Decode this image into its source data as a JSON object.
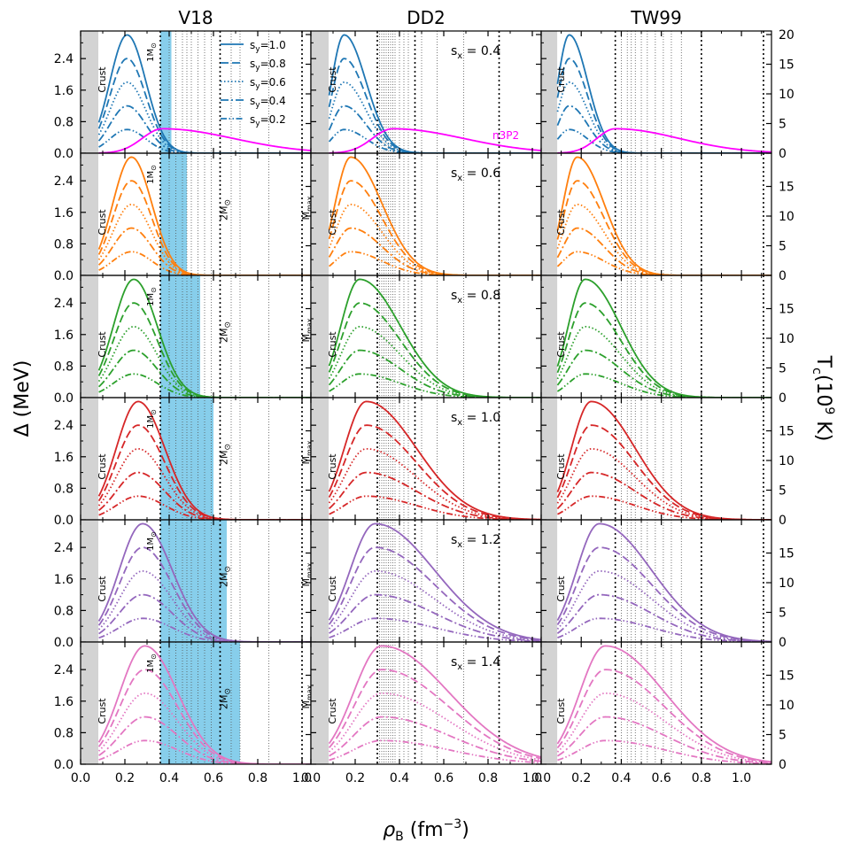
{
  "columns": [
    "V18",
    "DD2",
    "TW99"
  ],
  "ylabel_left": "Δ (MeV)",
  "ylabel_right": "T",
  "ylabel_right_sub": "c",
  "ylabel_right_tail": "(10",
  "ylabel_right_exp": "9",
  "ylabel_right_end": " K)",
  "xlabel_main": "ρ",
  "xlabel_sub": "B",
  "xlabel_units": " (fm",
  "xlabel_exp": "−3",
  "xlabel_close": ")",
  "crust_label": "Crust",
  "n3p2_label": "n3P2",
  "mass_labels": {
    "one": "1M",
    "two": "2M",
    "sun": "⊙",
    "max_main": "M",
    "max_sub": "max"
  },
  "legend": {
    "entries": [
      {
        "main": "s",
        "sub": "y",
        "tail": "=1.0",
        "dash": "solid"
      },
      {
        "main": "s",
        "sub": "y",
        "tail": "=0.8",
        "dash": "dashed"
      },
      {
        "main": "s",
        "sub": "y",
        "tail": "=0.6",
        "dash": "dotted"
      },
      {
        "main": "s",
        "sub": "y",
        "tail": "=0.4",
        "dash": "dashdot"
      },
      {
        "main": "s",
        "sub": "y",
        "tail": "=0.2",
        "dash": "dashdotdot"
      }
    ]
  },
  "colors": [
    "#1f77b4",
    "#ff7f0e",
    "#2ca02c",
    "#d62728",
    "#9467bd",
    "#e377c2"
  ],
  "n3p2_color": "#ff00ff",
  "shade_color": "#87ceeb",
  "crust_color": "#d3d3d3",
  "chart_data": {
    "type": "line",
    "grid": "3 columns (EoS) x 6 rows (s_x)",
    "sx_values": [
      "s",
      "x",
      "= 0.4",
      "= 0.6",
      "= 0.8",
      "= 1.0",
      "= 1.2",
      "= 1.4"
    ],
    "sx_labels": [
      "0.4",
      "0.6",
      "0.8",
      "1.0",
      "1.2",
      "1.4"
    ],
    "sx_prefix": "s",
    "sx_sub": "x",
    "sx_eq": " = ",
    "sy_values": [
      1.0,
      0.8,
      0.6,
      0.4,
      0.2
    ],
    "xlim": [
      0.0,
      1.04
    ],
    "xlim_tw99": [
      0.0,
      1.15
    ],
    "ylim": [
      0.0,
      3.1
    ],
    "ylim_right": [
      0,
      20
    ],
    "crust_edge": 0.08,
    "x_ticks": [
      0.0,
      0.2,
      0.4,
      0.6,
      0.8,
      1.0
    ],
    "x_ticks_tw99": [
      0.0,
      0.2,
      0.4,
      0.6,
      0.8,
      1.0
    ],
    "x_tick_labels": [
      "0.0",
      "0.2",
      "0.4",
      "0.6",
      "0.8",
      "1.0"
    ],
    "y_ticks": [
      0.0,
      0.8,
      1.6,
      2.4
    ],
    "y_tick_labels": [
      "0.0",
      "0.8",
      "1.6",
      "2.4"
    ],
    "tc_ticks": [
      0,
      5,
      10,
      15
    ],
    "tc_ticks_top": [
      0,
      5,
      10,
      15,
      20
    ],
    "tc_tick_labels": [
      "0",
      "5",
      "10",
      "15"
    ],
    "tc_tick_labels_top": [
      "0",
      "5",
      "10",
      "15",
      "20"
    ],
    "peak_gap_MeV": 3.0,
    "gap_curves": {
      "V18": [
        {
          "peak": 0.21,
          "w_left": 0.11,
          "w_right": 0.12
        },
        {
          "peak": 0.23,
          "w_left": 0.12,
          "w_right": 0.13
        },
        {
          "peak": 0.24,
          "w_left": 0.13,
          "w_right": 0.15
        },
        {
          "peak": 0.26,
          "w_left": 0.14,
          "w_right": 0.17
        },
        {
          "peak": 0.28,
          "w_left": 0.15,
          "w_right": 0.19
        },
        {
          "peak": 0.29,
          "w_left": 0.16,
          "w_right": 0.21
        }
      ],
      "DD2": [
        {
          "peak": 0.15,
          "w_left": 0.08,
          "w_right": 0.14
        },
        {
          "peak": 0.18,
          "w_left": 0.1,
          "w_right": 0.2
        },
        {
          "peak": 0.22,
          "w_left": 0.12,
          "w_right": 0.26
        },
        {
          "peak": 0.25,
          "w_left": 0.14,
          "w_right": 0.32
        },
        {
          "peak": 0.29,
          "w_left": 0.16,
          "w_right": 0.38
        },
        {
          "peak": 0.32,
          "w_left": 0.18,
          "w_right": 0.43
        }
      ],
      "TW99": [
        {
          "peak": 0.14,
          "w_left": 0.08,
          "w_right": 0.13
        },
        {
          "peak": 0.18,
          "w_left": 0.1,
          "w_right": 0.19
        },
        {
          "peak": 0.22,
          "w_left": 0.12,
          "w_right": 0.25
        },
        {
          "peak": 0.25,
          "w_left": 0.14,
          "w_right": 0.31
        },
        {
          "peak": 0.29,
          "w_left": 0.16,
          "w_right": 0.37
        },
        {
          "peak": 0.32,
          "w_left": 0.18,
          "w_right": 0.42
        }
      ]
    },
    "n3p2_curve": {
      "peak": 0.37,
      "peak_gap_MeV": 0.62,
      "w_left": 0.13,
      "w_right": 0.45
    },
    "mass_markers": {
      "V18": {
        "one": 0.36,
        "two": 0.63,
        "max": 1.0
      },
      "DD2": {
        "one": 0.3,
        "two": 0.47,
        "max": 0.85
      },
      "TW99": {
        "one": 0.37,
        "two": 0.8,
        "max": 1.11
      }
    },
    "profile_lines": {
      "V18": [
        0.4,
        0.43,
        0.46,
        0.48,
        0.5,
        0.53,
        0.56,
        0.59,
        0.68,
        0.72,
        0.85
      ],
      "DD2": [
        0.31,
        0.32,
        0.33,
        0.34,
        0.35,
        0.36,
        0.37,
        0.38,
        0.4,
        0.42,
        0.44,
        0.5,
        0.57,
        0.69
      ],
      "TW99": [
        0.4,
        0.43,
        0.45,
        0.47,
        0.5,
        0.53,
        0.57,
        0.61,
        0.65,
        0.7
      ]
    },
    "dU_shading_V18": [
      0.36,
      0.41,
      0.48,
      0.54,
      0.6,
      0.66,
      0.72
    ]
  }
}
